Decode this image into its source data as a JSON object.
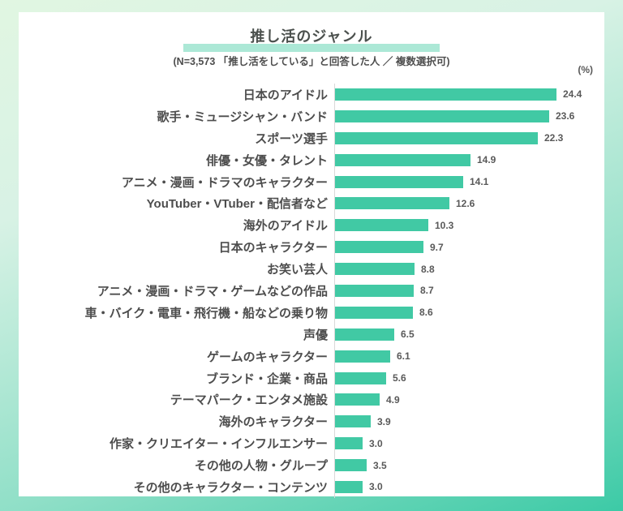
{
  "header": {
    "title": "推し活のジャンル",
    "subtitle": "(N=3,573 「推し活をしている」と回答した人 ／ 複数選択可)",
    "unit_label": "(%)"
  },
  "colors": {
    "bar": "#41c9a4",
    "highlight": "#ace8d6",
    "axis_line": "#d9d9d9",
    "title_text": "#4b504d",
    "label_text": "#4d4d4d",
    "value_text": "#595959",
    "card_bg": "#ffffff",
    "bg_top": "#e1f6e2",
    "bg_bottom": "#3ccaa6"
  },
  "chart_data": {
    "type": "bar",
    "orientation": "horizontal",
    "title": "推し活のジャンル",
    "subtitle": "(N=3,573 「推し活をしている」と回答した人 ／ 複数選択可)",
    "unit": "%",
    "xlim": [
      0,
      26
    ],
    "grid": false,
    "legend": false,
    "value_labels": true,
    "categories": [
      "日本のアイドル",
      "歌手・ミュージシャン・バンド",
      "スポーツ選手",
      "俳優・女優・タレント",
      "アニメ・漫画・ドラマのキャラクター",
      "YouTuber・VTuber・配信者など",
      "海外のアイドル",
      "日本のキャラクター",
      "お笑い芸人",
      "アニメ・漫画・ドラマ・ゲームなどの作品",
      "車・バイク・電車・飛行機・船などの乗り物",
      "声優",
      "ゲームのキャラクター",
      "ブランド・企業・商品",
      "テーマパーク・エンタメ施設",
      "海外のキャラクター",
      "作家・クリエイター・インフルエンサー",
      "その他の人物・グループ",
      "その他のキャラクター・コンテンツ"
    ],
    "values": [
      24.4,
      23.6,
      22.3,
      14.9,
      14.1,
      12.6,
      10.3,
      9.7,
      8.8,
      8.7,
      8.6,
      6.5,
      6.1,
      5.6,
      4.9,
      3.9,
      3.0,
      3.5,
      3.0
    ]
  }
}
